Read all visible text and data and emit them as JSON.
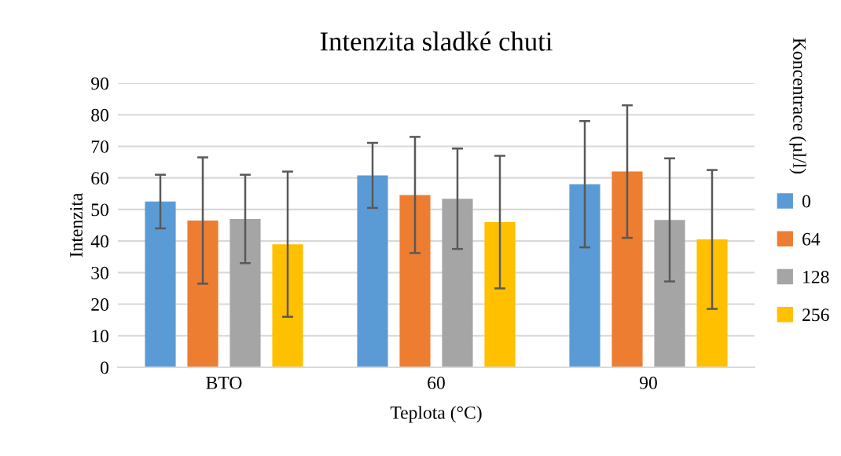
{
  "chart_data": {
    "type": "bar",
    "title": "Intenzita sladké chuti",
    "xlabel": "Teplota (°C)",
    "ylabel": "Intenzita",
    "legend_title": "Koncentrace (µl/l)",
    "categories": [
      "BTO",
      "60",
      "90"
    ],
    "series": [
      {
        "name": "0",
        "color": "#5b9bd5",
        "values": [
          52.5,
          60.8,
          58
        ],
        "errors": [
          8.5,
          10.3,
          20
        ]
      },
      {
        "name": "64",
        "color": "#ed7d31",
        "values": [
          46.5,
          54.6,
          62
        ],
        "errors": [
          20,
          18.4,
          21
        ]
      },
      {
        "name": "128",
        "color": "#a5a5a5",
        "values": [
          47,
          53.4,
          46.7
        ],
        "errors": [
          14,
          15.9,
          19.5
        ]
      },
      {
        "name": "256",
        "color": "#ffc000",
        "values": [
          39,
          46,
          40.5
        ],
        "errors": [
          23,
          21,
          22
        ]
      }
    ],
    "ylim": [
      0,
      90
    ],
    "yticks": [
      0,
      10,
      20,
      30,
      40,
      50,
      60,
      70,
      80,
      90
    ],
    "grid": "y",
    "legend": "right"
  }
}
